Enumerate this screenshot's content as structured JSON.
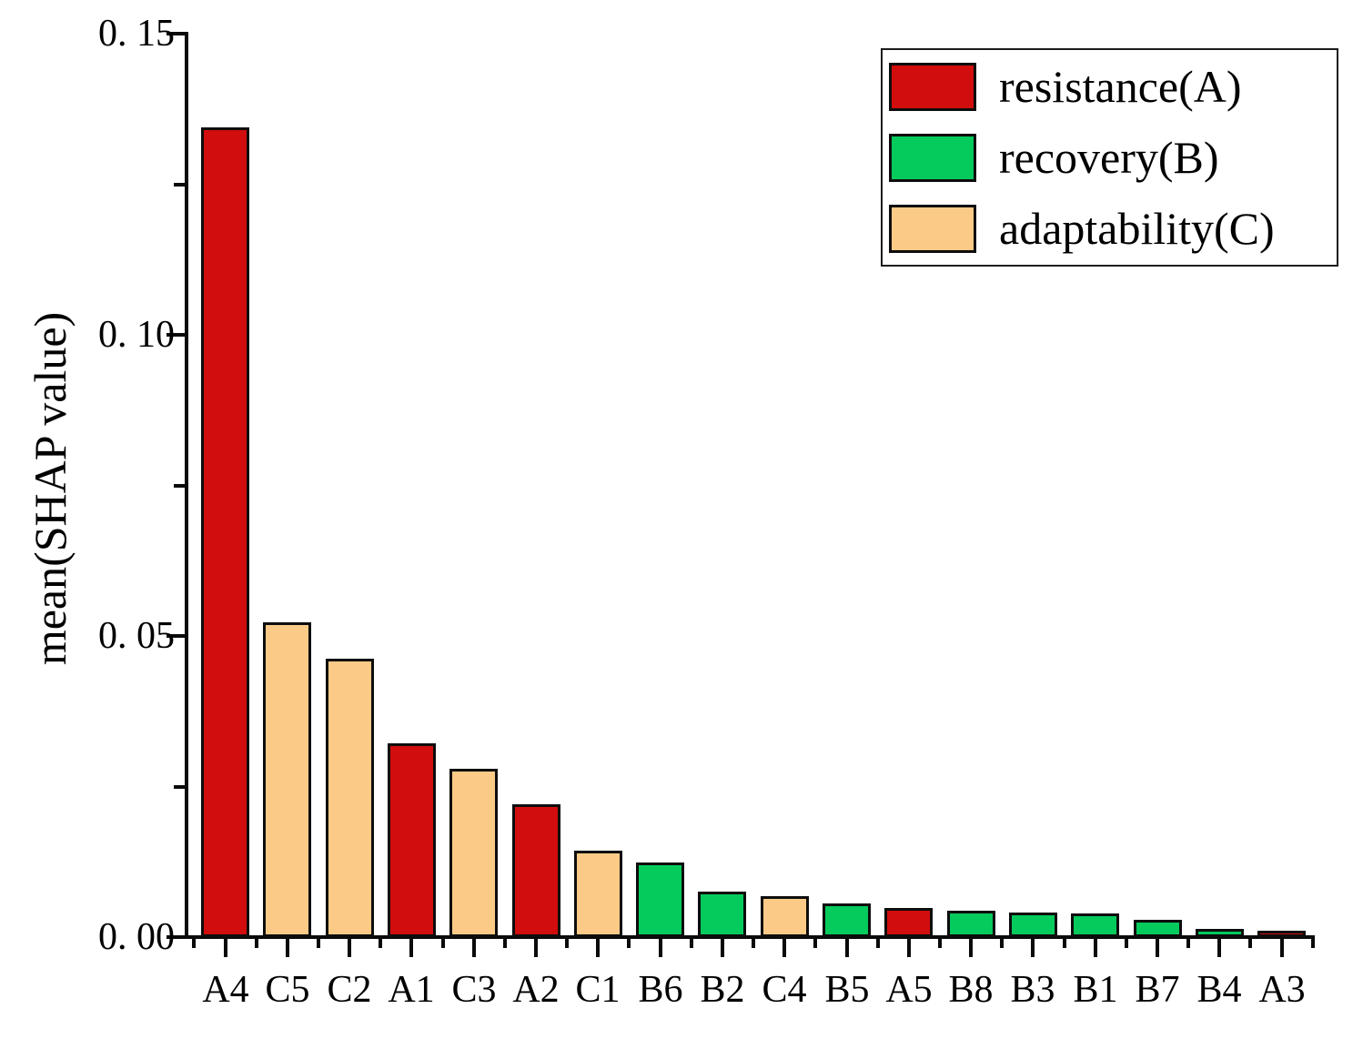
{
  "figure": {
    "background": "#ffffff",
    "axis_color": "#0a0a0a",
    "bar_outline_color": "#0d0d0d"
  },
  "chart_data": {
    "type": "bar",
    "title": "",
    "xlabel": "",
    "ylabel": "mean(SHAP value)",
    "ylim": [
      0,
      0.15
    ],
    "grid": false,
    "legend_position": "top-right",
    "categories": [
      "A4",
      "C5",
      "C2",
      "A1",
      "C3",
      "A2",
      "C1",
      "B6",
      "B2",
      "C4",
      "B5",
      "A5",
      "B8",
      "B3",
      "B1",
      "B7",
      "B4",
      "A3"
    ],
    "values": [
      0.1345,
      0.0523,
      0.0462,
      0.0321,
      0.028,
      0.022,
      0.0144,
      0.0124,
      0.0075,
      0.0068,
      0.0056,
      0.0048,
      0.0044,
      0.0041,
      0.0039,
      0.0029,
      0.0014,
      0.0011
    ],
    "groups": [
      "A",
      "C",
      "C",
      "A",
      "C",
      "A",
      "C",
      "B",
      "B",
      "C",
      "B",
      "A",
      "B",
      "B",
      "B",
      "B",
      "B",
      "A"
    ],
    "group_colors": {
      "A": "#d10d0d",
      "B": "#05ca5c",
      "C": "#fbca87"
    },
    "y_major_ticks": [
      {
        "value": 0.0,
        "label": "0. 00"
      },
      {
        "value": 0.05,
        "label": "0. 05"
      },
      {
        "value": 0.1,
        "label": "0. 10"
      },
      {
        "value": 0.15,
        "label": "0. 15"
      }
    ],
    "y_minor_tick_values": [
      0.025,
      0.075,
      0.125
    ]
  },
  "legend": {
    "items": [
      {
        "label": "resistance(A)",
        "group": "A",
        "color": "#d10d0d"
      },
      {
        "label": "recovery(B)",
        "group": "B",
        "color": "#05ca5c"
      },
      {
        "label": "adaptability(C)",
        "group": "C",
        "color": "#fbca87"
      }
    ]
  }
}
